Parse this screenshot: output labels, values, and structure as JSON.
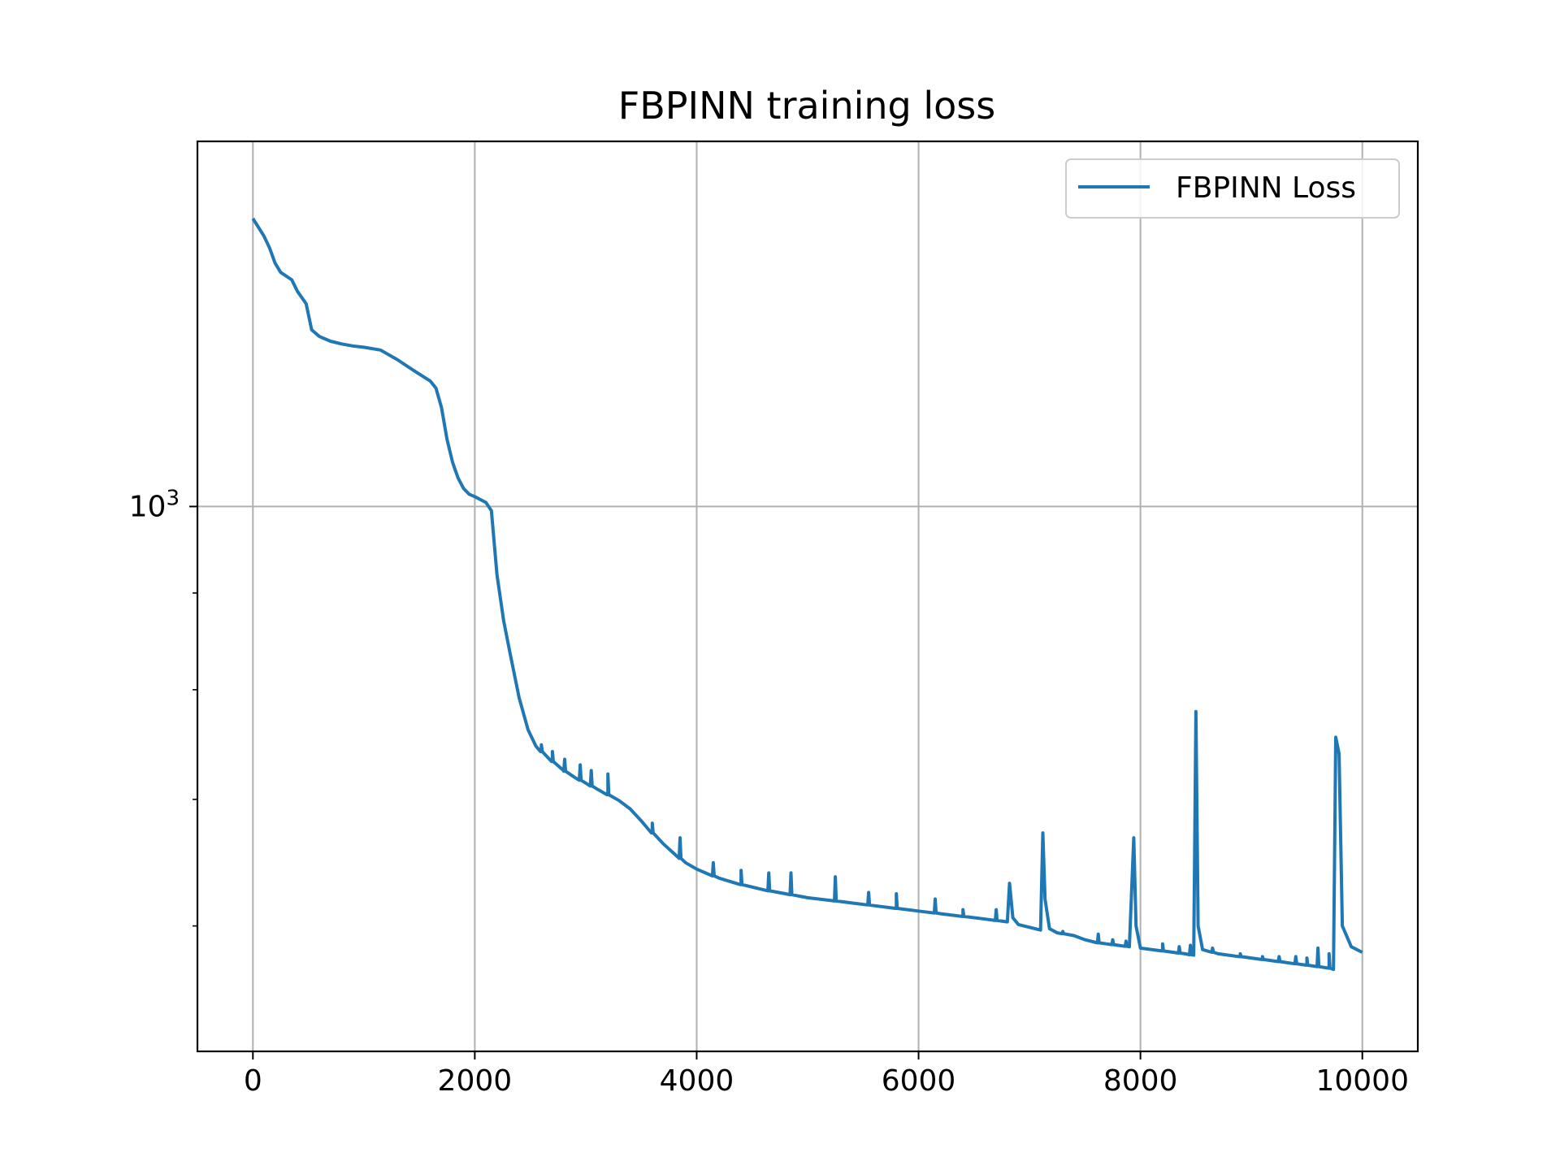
{
  "chart_data": {
    "type": "line",
    "title": "FBPINN training loss",
    "xlabel": "",
    "ylabel": "",
    "xlim": [
      -500,
      10500
    ],
    "ylim": [
      515,
      1560
    ],
    "y_scale": "log",
    "grid": true,
    "legend_position": "top-right",
    "x_ticks": [
      {
        "value": 0,
        "label": "0"
      },
      {
        "value": 2000,
        "label": "2000"
      },
      {
        "value": 4000,
        "label": "4000"
      },
      {
        "value": 6000,
        "label": "6000"
      },
      {
        "value": 8000,
        "label": "8000"
      },
      {
        "value": 10000,
        "label": "10000"
      }
    ],
    "y_major_ticks": [
      {
        "value": 1000,
        "base": "10",
        "exponent": "3"
      }
    ],
    "y_minor_ticks": [
      600,
      700,
      800,
      900,
      2000
    ],
    "series": [
      {
        "name": "FBPINN Loss",
        "color": "#1f77b4",
        "points": [
          [
            0,
            1420
          ],
          [
            100,
            1390
          ],
          [
            150,
            1370
          ],
          [
            200,
            1345
          ],
          [
            250,
            1330
          ],
          [
            350,
            1318
          ],
          [
            400,
            1300
          ],
          [
            480,
            1280
          ],
          [
            530,
            1240
          ],
          [
            600,
            1230
          ],
          [
            700,
            1223
          ],
          [
            800,
            1219
          ],
          [
            900,
            1216
          ],
          [
            1000,
            1214
          ],
          [
            1150,
            1210
          ],
          [
            1300,
            1196
          ],
          [
            1450,
            1180
          ],
          [
            1600,
            1165
          ],
          [
            1650,
            1155
          ],
          [
            1700,
            1128
          ],
          [
            1750,
            1085
          ],
          [
            1800,
            1055
          ],
          [
            1850,
            1035
          ],
          [
            1900,
            1022
          ],
          [
            1950,
            1015
          ],
          [
            2000,
            1012
          ],
          [
            2100,
            1005
          ],
          [
            2150,
            995
          ],
          [
            2200,
            920
          ],
          [
            2260,
            870
          ],
          [
            2320,
            835
          ],
          [
            2400,
            792
          ],
          [
            2480,
            762
          ],
          [
            2550,
            747
          ],
          [
            2600,
            742
          ],
          [
            2700,
            733
          ],
          [
            2800,
            725
          ],
          [
            2900,
            719
          ],
          [
            3000,
            714
          ],
          [
            3100,
            709
          ],
          [
            3200,
            704
          ],
          [
            3300,
            699
          ],
          [
            3400,
            692
          ],
          [
            3500,
            682
          ],
          [
            3600,
            672
          ],
          [
            3700,
            663
          ],
          [
            3800,
            655
          ],
          [
            3900,
            648
          ],
          [
            4000,
            643
          ],
          [
            4200,
            636
          ],
          [
            4400,
            631
          ],
          [
            4600,
            627
          ],
          [
            4800,
            624
          ],
          [
            5000,
            621
          ],
          [
            5200,
            619
          ],
          [
            5400,
            617
          ],
          [
            5600,
            615
          ],
          [
            5800,
            613
          ],
          [
            6000,
            611
          ],
          [
            6200,
            609
          ],
          [
            6400,
            607
          ],
          [
            6600,
            605
          ],
          [
            6800,
            603
          ],
          [
            6820,
            632
          ],
          [
            6850,
            606
          ],
          [
            6900,
            601
          ],
          [
            7000,
            599
          ],
          [
            7100,
            597
          ],
          [
            7120,
            672
          ],
          [
            7140,
            620
          ],
          [
            7180,
            598
          ],
          [
            7250,
            595
          ],
          [
            7400,
            593
          ],
          [
            7500,
            590
          ],
          [
            7600,
            588
          ],
          [
            7700,
            587
          ],
          [
            7800,
            586
          ],
          [
            7900,
            585
          ],
          [
            7940,
            668
          ],
          [
            7960,
            600
          ],
          [
            8000,
            584
          ],
          [
            8200,
            582
          ],
          [
            8400,
            580
          ],
          [
            8480,
            579
          ],
          [
            8500,
            779
          ],
          [
            8520,
            600
          ],
          [
            8560,
            583
          ],
          [
            8700,
            580
          ],
          [
            8900,
            578
          ],
          [
            9100,
            576
          ],
          [
            9300,
            574
          ],
          [
            9500,
            572
          ],
          [
            9700,
            570
          ],
          [
            9740,
            569
          ],
          [
            9760,
            755
          ],
          [
            9790,
            740
          ],
          [
            9820,
            600
          ],
          [
            9900,
            585
          ],
          [
            10000,
            581
          ]
        ],
        "spikes": [
          [
            2600,
            748
          ],
          [
            2700,
            742
          ],
          [
            2810,
            735
          ],
          [
            2950,
            730
          ],
          [
            3050,
            725
          ],
          [
            3200,
            722
          ],
          [
            3600,
            680
          ],
          [
            3850,
            668
          ],
          [
            4150,
            648
          ],
          [
            4400,
            642
          ],
          [
            4650,
            640
          ],
          [
            4850,
            640
          ],
          [
            5250,
            637
          ],
          [
            5550,
            625
          ],
          [
            5800,
            624
          ],
          [
            6150,
            620
          ],
          [
            6400,
            612
          ],
          [
            6700,
            612
          ],
          [
            7300,
            596
          ],
          [
            7620,
            594
          ],
          [
            7750,
            590
          ],
          [
            7870,
            589
          ],
          [
            8200,
            587
          ],
          [
            8350,
            585
          ],
          [
            8450,
            586
          ],
          [
            8650,
            584
          ],
          [
            8900,
            580
          ],
          [
            9100,
            578
          ],
          [
            9250,
            578
          ],
          [
            9400,
            578
          ],
          [
            9500,
            577
          ],
          [
            9600,
            584
          ],
          [
            9700,
            580
          ]
        ]
      }
    ]
  }
}
